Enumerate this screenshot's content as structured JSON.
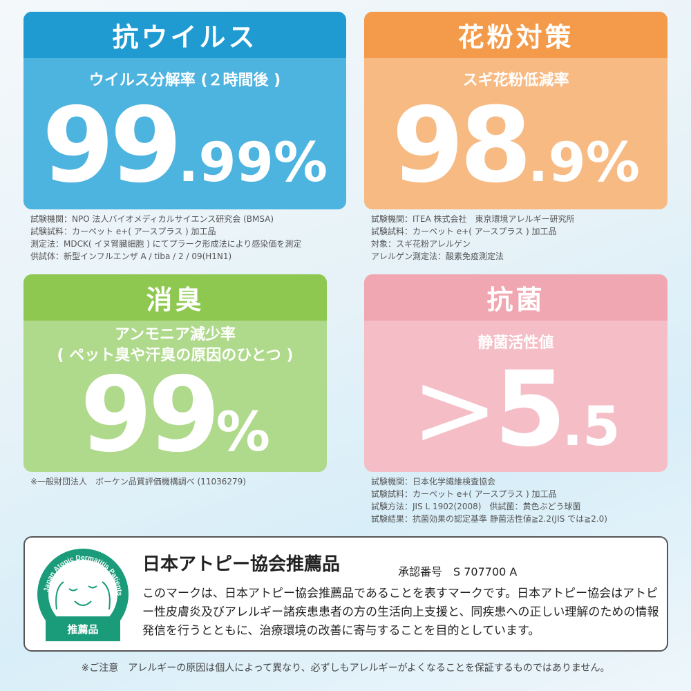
{
  "antivirus": {
    "title": "抗ウイルス",
    "subtitle": "ウイルス分解率 (２時間後 )",
    "value_main": "99",
    "value_sub": ".99%",
    "notes": [
      "試験機関：NPO 法人バイオメディカルサイエンス研究会 (BMSA)",
      "試験試料：カーペット e+( アースプラス ) 加工品",
      "測定法：MDCK( イヌ腎臓細胞 ) にてプラーク形成法により感染価を測定",
      "供試体：新型インフルエンザ A / tiba / 2 / 09(H1N1)"
    ]
  },
  "pollen": {
    "title": "花粉対策",
    "subtitle": "スギ花粉低減率",
    "value_main": "98",
    "value_sub": ".9%",
    "notes": [
      "試験機関：ITEA 株式会社　東京環境アレルギー研究所",
      "試験試料：カーペット e+( アースプラス ) 加工品",
      "対象：スギ花粉アレルゲン",
      "アレルゲン測定法：酸素免疫測定法"
    ]
  },
  "deodorant": {
    "title": "消臭",
    "subtitle_1": "アンモニア減少率",
    "subtitle_2": "( ペット臭や汗臭の原因のひとつ )",
    "value_main": "99",
    "value_sub": "%",
    "notes": [
      "※一般財団法人　ボーケン品質評価機構調べ (11036279)"
    ]
  },
  "antibacterial": {
    "title": "抗菌",
    "subtitle": "静菌活性値",
    "value_prefix": ">",
    "value_main": "5",
    "value_sub": ".5",
    "notes": [
      "試験機関：日本化学繊維検査協会",
      "試験試料：カーペット e+( アースプラス ) 加工品",
      "試験方法：JIS L 1902(2008)　供試菌：黄色ぶどう球菌",
      "試験結果：抗菌効果の認定基準 静菌活性値≧2.2(JIS では≧2.0)"
    ]
  },
  "certification": {
    "logo_text": "Japan Atopic Dermatitis Patients Association",
    "logo_badge": "推薦品",
    "title": "日本アトピー協会推薦品",
    "approval_label": "承認番号　S 707700 A",
    "description": "このマークは、日本アトピー協会推薦品であることを表すマークです。日本アトピー協会はアトピー性皮膚炎及びアレルギー諸疾患患者の方の生活向上支援と、同疾患への正しい理解のための情報発信を行うとともに、治療環境の改善に寄与することを目的としています。"
  },
  "footnote": "※ご注意　アレルギーの原因は個人によって異なり、必ずしもアレルギーがよくなることを保証するものではありません。",
  "colors": {
    "blue": "#1f9bd1",
    "orange": "#f39a4b",
    "green": "#8ec851",
    "pink": "#f0a7b1",
    "logo_green": "#1a9b7a"
  }
}
